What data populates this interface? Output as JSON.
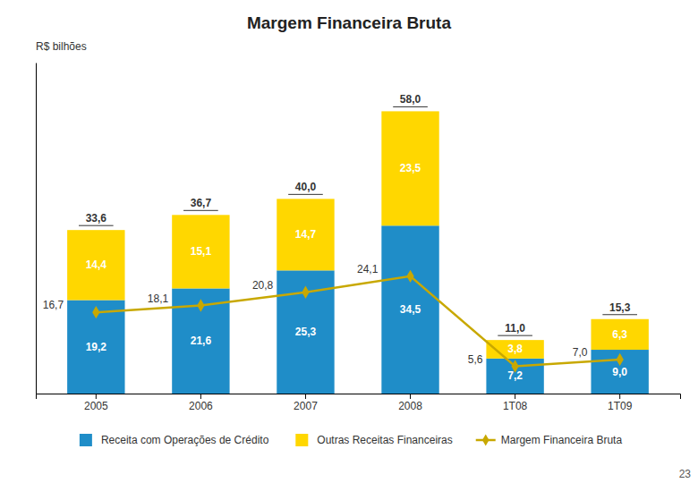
{
  "chart_data": {
    "type": "bar",
    "title": "Margem Financeira Bruta",
    "ylabel": "R$ bilhões",
    "categories": [
      "2005",
      "2006",
      "2007",
      "2008",
      "1T08",
      "1T09"
    ],
    "stacked": true,
    "data_labels": true,
    "grid": false,
    "legend": "bottom",
    "tick_labels": "x",
    "ylim": [
      0,
      68
    ],
    "series": [
      {
        "name": "Receita com Operações de Crédito",
        "type": "bar",
        "color": "#1F8DC8",
        "values": [
          19.2,
          21.6,
          25.3,
          34.5,
          7.2,
          9.0
        ],
        "value_labels": [
          "19,2",
          "21,6",
          "25,3",
          "34,5",
          "7,2",
          "9,0"
        ]
      },
      {
        "name": "Outras Receitas Financeiras",
        "type": "bar",
        "color": "#FFD700",
        "values": [
          14.4,
          15.1,
          14.7,
          23.5,
          3.8,
          6.3
        ],
        "value_labels": [
          "14,4",
          "15,1",
          "14,7",
          "23,5",
          "3,8",
          "6,3"
        ]
      },
      {
        "name": "Margem Financeira Bruta",
        "type": "line",
        "color": "#C8A800",
        "marker": "diamond",
        "values": [
          16.7,
          18.1,
          20.8,
          24.1,
          5.6,
          7.0
        ],
        "value_labels": [
          "16,7",
          "18,1",
          "20,8",
          "24,1",
          "5,6",
          "7,0"
        ]
      }
    ],
    "totals": [
      33.6,
      36.7,
      40.0,
      58.0,
      11.0,
      15.3
    ],
    "total_labels": [
      "33,6",
      "36,7",
      "40,0",
      "58,0",
      "11,0",
      "15,3"
    ],
    "annotations": [
      "23"
    ]
  }
}
